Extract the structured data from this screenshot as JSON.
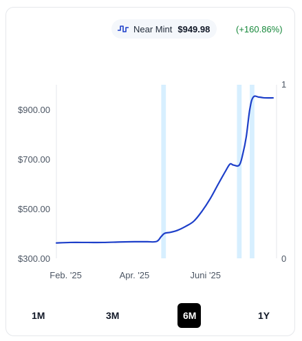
{
  "legend": {
    "name": "Near Mint",
    "price": "$949.98",
    "change": "(+160.86%)",
    "icon": "step-line-icon",
    "change_color": "#16883a"
  },
  "colors": {
    "line": "#1d3fc9",
    "highlight": "#d7efff",
    "active_tab_bg": "#000000"
  },
  "chart_data": {
    "type": "line",
    "series": [
      {
        "x": [
          "2025-01-24",
          "2025-02-05",
          "2025-02-20",
          "2025-03-05",
          "2025-03-20",
          "2025-04-01",
          "2025-04-12",
          "2025-04-20",
          "2025-04-24",
          "2025-04-27",
          "2025-05-02",
          "2025-05-08",
          "2025-05-15",
          "2025-05-22",
          "2025-05-29",
          "2025-06-05",
          "2025-06-12",
          "2025-06-18",
          "2025-06-22",
          "2025-06-25",
          "2025-06-30",
          "2025-07-03",
          "2025-07-06",
          "2025-07-09",
          "2025-07-12",
          "2025-07-17",
          "2025-07-22",
          "2025-07-29"
        ],
        "values": [
          362,
          364,
          364,
          364,
          366,
          367,
          367,
          368,
          388,
          401,
          405,
          413,
          429,
          450,
          490,
          540,
          600,
          650,
          680,
          676,
          676,
          720,
          790,
          900,
          950,
          950,
          947,
          947
        ]
      }
    ],
    "y_ticks": [
      "$300.00",
      "$500.00",
      "$700.00",
      "$900.00"
    ],
    "y_tick_values": [
      300,
      500,
      700,
      900
    ],
    "ylim": [
      300,
      1000
    ],
    "x_ticks": [
      "Feb. '25",
      "Apr. '25",
      "Juni '25"
    ],
    "x_tick_values": [
      "2025-02-01",
      "2025-04-01",
      "2025-06-01"
    ],
    "xlim": [
      "2025-01-24",
      "2025-08-01"
    ],
    "y2_ticks": [
      "0",
      "1"
    ],
    "highlight_ranges": [
      [
        "2025-04-24",
        "2025-04-28"
      ],
      [
        "2025-06-28",
        "2025-07-02"
      ],
      [
        "2025-07-09",
        "2025-07-13"
      ]
    ],
    "grid": false
  },
  "tabs": [
    {
      "label": "1M",
      "active": false
    },
    {
      "label": "3M",
      "active": false
    },
    {
      "label": "6M",
      "active": true
    },
    {
      "label": "1Y",
      "active": false
    }
  ]
}
